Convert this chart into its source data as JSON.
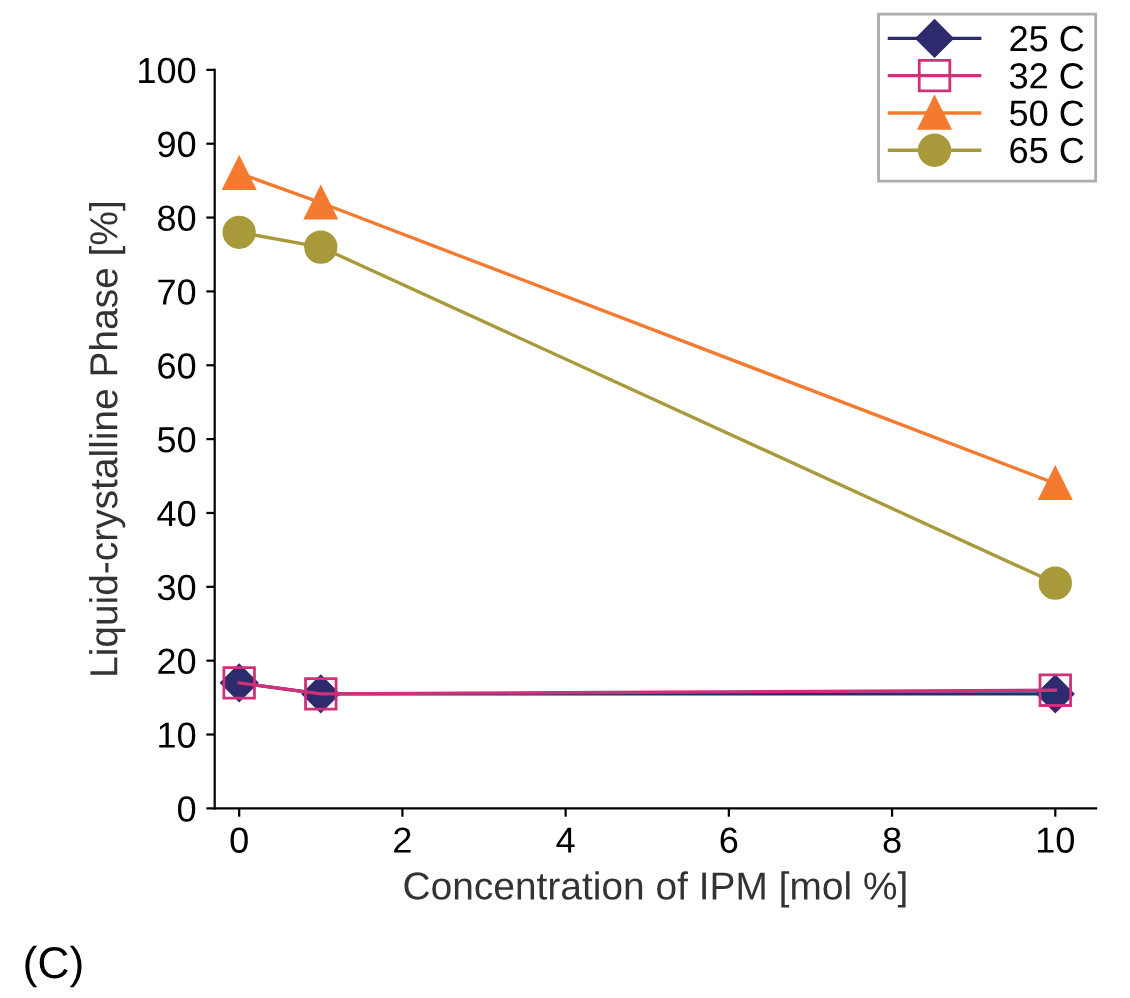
{
  "chart_data": {
    "type": "line",
    "xlabel": "Concentration of IPM [mol %]",
    "ylabel": "Liquid-crystalline Phase [%]",
    "x": [
      0,
      1,
      10
    ],
    "series": [
      {
        "name": "25 C",
        "color": "#2e2a6e",
        "values": [
          17,
          15.5,
          15.5
        ],
        "marker": "diamond"
      },
      {
        "name": "32 C",
        "color": "#d0307a",
        "values": [
          17,
          15.5,
          16
        ],
        "marker": "square"
      },
      {
        "name": "50 C",
        "color": "#f47a30",
        "values": [
          86,
          82,
          44
        ],
        "marker": "triangle"
      },
      {
        "name": "65 C",
        "color": "#a89a3a",
        "values": [
          78,
          76,
          30.5
        ],
        "marker": "circle"
      }
    ],
    "xlim": [
      -0.3,
      10.5
    ],
    "xticks": [
      0,
      2,
      4,
      6,
      8,
      10
    ],
    "ylim": [
      0,
      100
    ],
    "yticks": [
      0,
      10,
      20,
      30,
      40,
      50,
      60,
      70,
      80,
      90,
      100
    ],
    "grid": false,
    "legend": "top right",
    "line_style": "solid",
    "annotations": [
      "(C)"
    ]
  }
}
